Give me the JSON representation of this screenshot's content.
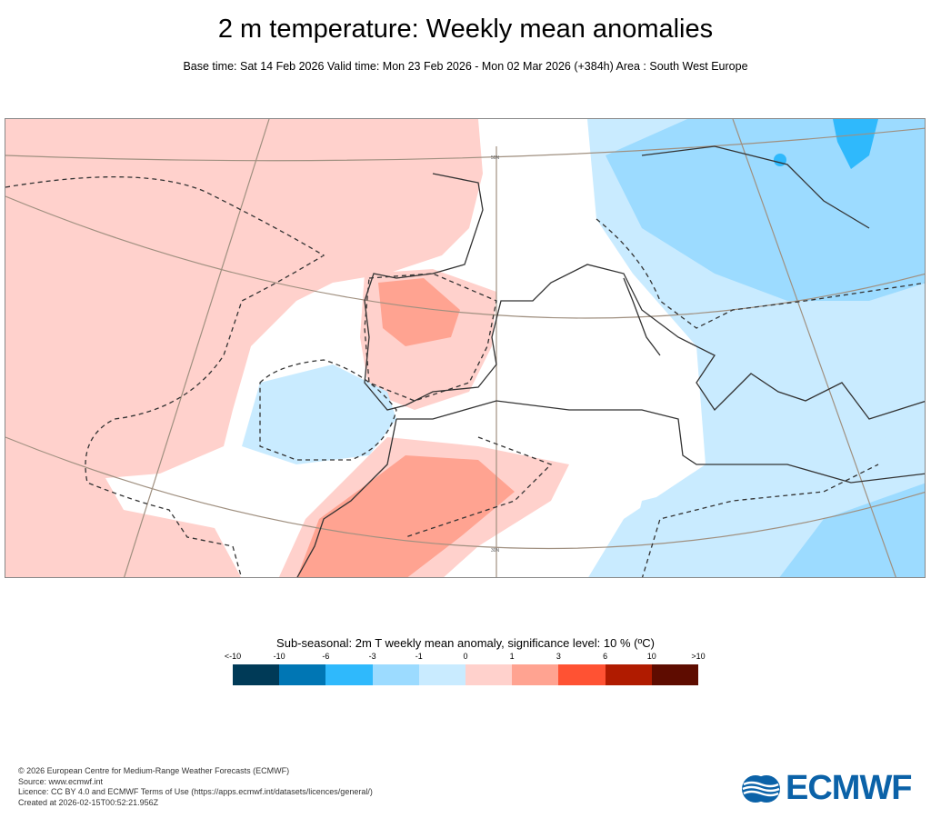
{
  "title": "2 m temperature: Weekly mean anomalies",
  "subtitle": "Base time: Sat 14 Feb 2026 Valid time: Mon 23 Feb 2026 - Mon 02 Mar 2026 (+384h) Area : South West Europe",
  "map": {
    "area": "South West Europe",
    "lat_labels": [
      "50N",
      "30N"
    ],
    "colors": {
      "land_outline": "#333333",
      "graticule": "#a09080",
      "pos_light": "#ffd1cc",
      "pos_mid": "#ffa391",
      "neg_light": "#c9ebff",
      "neg_mid": "#9cdbff",
      "neg_strong": "#2fb9fc"
    }
  },
  "legend": {
    "title": "Sub-seasonal: 2m T weekly mean anomaly, significance level: 10 % (ºC)",
    "ticks": [
      "<-10",
      "-10",
      "-6",
      "-3",
      "-1",
      "0",
      "1",
      "3",
      "6",
      "10",
      ">10"
    ],
    "colors": [
      "#003a57",
      "#0076b4",
      "#2fb9fc",
      "#9cdbff",
      "#c9ebff",
      "#ffd1cc",
      "#ffa391",
      "#ff5233",
      "#b01b00",
      "#5e0c00"
    ]
  },
  "footer": {
    "lines": [
      "© 2026 European Centre for Medium-Range Weather Forecasts (ECMWF)",
      "Source: www.ecmwf.int",
      "Licence: CC BY 4.0 and ECMWF Terms of Use (https://apps.ecmwf.int/datasets/licences/general/)",
      "Created at 2026-02-15T00:52:21.956Z"
    ]
  },
  "logo": {
    "text": "ECMWF",
    "color": "#0b62a8"
  }
}
